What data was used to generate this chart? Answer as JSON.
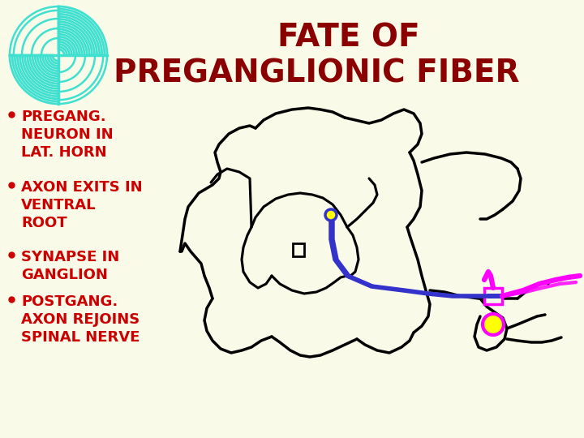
{
  "title_line1": "FATE OF",
  "title_line2": "PREGANGLIONIC FIBER",
  "title_color": "#8B0000",
  "title_fontsize": 28,
  "bg_color": "#FAFAE8",
  "bullet_color": "#CC0000",
  "bullet_fontsize": 13,
  "bullets": [
    "PREGANG.\nNEURON IN\nLAT. HORN",
    "AXON EXITS IN\nVENTRAL\nROOT",
    "SYNAPSE IN\nGANGLION",
    "POSTGANG.\nAXON REJOINS\nSPINAL NERVE"
  ],
  "logo_color": "#40E0D0",
  "spinal_cord_color": "#000000",
  "preganglionic_color": "#3333CC",
  "postganglionic_color": "#FF00FF",
  "neuron_fill": "#FFFF00",
  "neuron_border": "#3333CC",
  "ganglion_fill": "#FFFF00",
  "ganglion_border": "#FF00FF"
}
